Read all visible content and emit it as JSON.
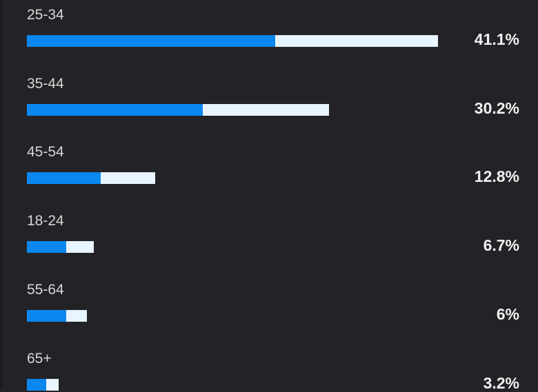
{
  "categories": [
    "25-34",
    "35-44",
    "45-54",
    "18-24",
    "55-64",
    "65+"
  ],
  "values": [
    41.1,
    30.2,
    12.8,
    6.7,
    6,
    3.2
  ],
  "value_labels": [
    "41.1%",
    "30.2%",
    "12.8%",
    "6.7%",
    "6%",
    "3.2%"
  ],
  "color": "#e8f4ff",
  "highlight": {
    "color": "#0b87f0",
    "values": [
      24.8,
      17.6,
      7.4,
      3.9,
      3.9,
      1.9
    ]
  }
}
